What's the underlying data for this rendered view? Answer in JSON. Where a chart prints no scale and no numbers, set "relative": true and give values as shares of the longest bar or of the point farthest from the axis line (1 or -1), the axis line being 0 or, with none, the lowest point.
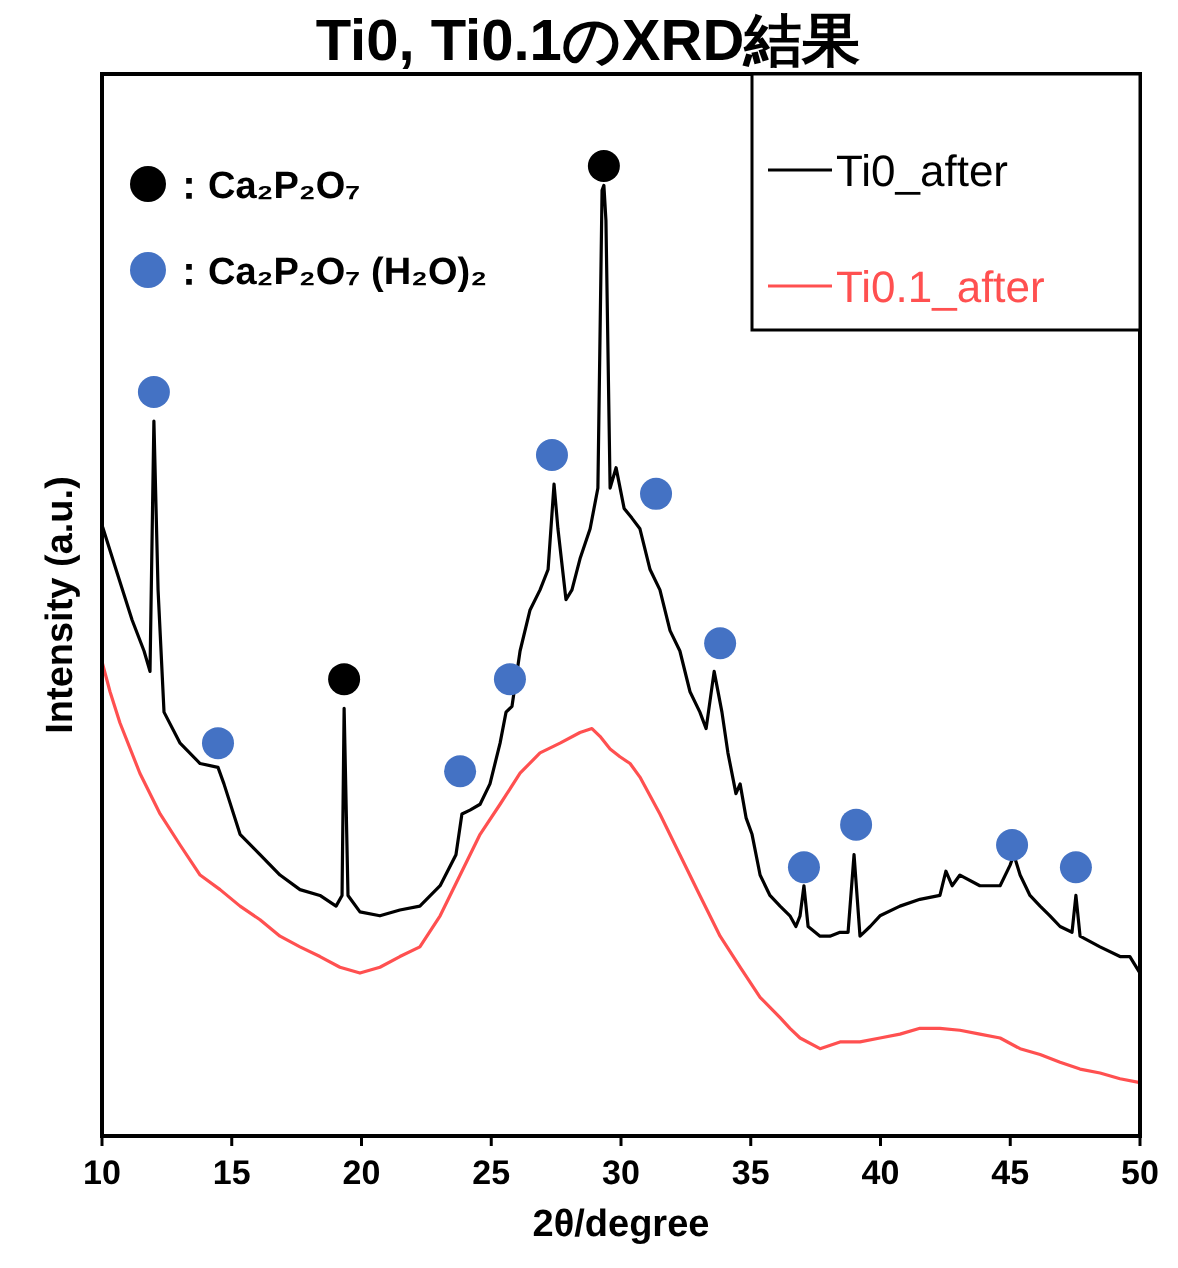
{
  "chart_data": {
    "type": "line",
    "title": "Ti0, Ti0.1のXRD結果",
    "xlabel": "2θ/degree",
    "ylabel": "Intensity (a.u.)",
    "relative": true,
    "xlim": [
      10,
      50
    ],
    "xticks": [
      10,
      15,
      20,
      25,
      30,
      35,
      40,
      45,
      50
    ],
    "legend": "top right",
    "grid": false,
    "marker": "none",
    "line_style": "solid",
    "series": [
      {
        "name": "Ti0_after",
        "color": "#000000",
        "x": [
          10.0,
          10.54,
          11.16,
          11.62,
          11.85,
          12.0,
          12.16,
          12.39,
          13.01,
          13.78,
          14.47,
          14.7,
          15.32,
          16.09,
          16.86,
          17.63,
          18.4,
          19.02,
          19.25,
          19.33,
          19.48,
          19.94,
          20.71,
          21.48,
          22.25,
          23.03,
          23.64,
          23.87,
          24.18,
          24.57,
          24.95,
          25.34,
          25.57,
          25.8,
          26.11,
          26.49,
          26.88,
          27.19,
          27.42,
          27.57,
          27.88,
          28.11,
          28.42,
          28.81,
          29.11,
          29.27,
          29.34,
          29.42,
          29.58,
          29.81,
          30.12,
          30.42,
          30.73,
          31.12,
          31.5,
          31.89,
          32.27,
          32.66,
          33.04,
          33.28,
          33.59,
          33.89,
          34.12,
          34.43,
          34.59,
          34.82,
          35.05,
          35.36,
          35.74,
          36.13,
          36.51,
          36.74,
          36.9,
          37.05,
          37.21,
          37.67,
          38.05,
          38.44,
          38.75,
          38.98,
          39.21,
          39.6,
          39.98,
          40.75,
          41.52,
          42.29,
          42.52,
          42.76,
          43.06,
          43.83,
          44.61,
          44.99,
          45.14,
          45.38,
          45.76,
          46.15,
          46.53,
          46.92,
          47.38,
          47.53,
          47.69,
          48.46,
          49.23,
          49.61,
          50.0
        ],
        "values": [
          0.63,
          0.584,
          0.532,
          0.5,
          0.479,
          0.737,
          0.563,
          0.437,
          0.405,
          0.384,
          0.38,
          0.363,
          0.311,
          0.29,
          0.269,
          0.254,
          0.248,
          0.237,
          0.248,
          0.441,
          0.248,
          0.231,
          0.227,
          0.233,
          0.237,
          0.258,
          0.29,
          0.332,
          0.336,
          0.342,
          0.363,
          0.405,
          0.437,
          0.443,
          0.5,
          0.542,
          0.563,
          0.584,
          0.672,
          0.626,
          0.553,
          0.563,
          0.595,
          0.626,
          0.668,
          0.975,
          0.98,
          0.944,
          0.668,
          0.689,
          0.647,
          0.637,
          0.626,
          0.584,
          0.563,
          0.521,
          0.5,
          0.458,
          0.437,
          0.42,
          0.479,
          0.437,
          0.395,
          0.353,
          0.363,
          0.328,
          0.311,
          0.269,
          0.248,
          0.237,
          0.227,
          0.216,
          0.227,
          0.258,
          0.216,
          0.206,
          0.206,
          0.21,
          0.21,
          0.29,
          0.206,
          0.216,
          0.227,
          0.237,
          0.244,
          0.248,
          0.273,
          0.258,
          0.269,
          0.258,
          0.258,
          0.279,
          0.29,
          0.269,
          0.248,
          0.237,
          0.227,
          0.216,
          0.21,
          0.248,
          0.206,
          0.195,
          0.185,
          0.185,
          0.168
        ]
      },
      {
        "name": "Ti0.1_after",
        "color": "#ff5050",
        "x": [
          10.0,
          10.31,
          10.69,
          11.46,
          12.24,
          13.01,
          13.78,
          14.55,
          15.32,
          16.09,
          16.86,
          17.63,
          18.4,
          19.17,
          19.94,
          20.71,
          21.48,
          22.25,
          23.03,
          23.8,
          24.57,
          25.34,
          26.11,
          26.88,
          27.65,
          28.42,
          28.88,
          29.19,
          29.58,
          29.96,
          30.35,
          30.73,
          31.5,
          32.27,
          33.04,
          33.82,
          34.59,
          35.36,
          36.13,
          36.51,
          36.9,
          37.67,
          38.44,
          39.21,
          39.98,
          40.75,
          41.52,
          42.29,
          43.06,
          43.83,
          44.61,
          45.38,
          46.15,
          46.92,
          47.69,
          48.46,
          49.23,
          50.0
        ],
        "values": [
          0.489,
          0.458,
          0.426,
          0.374,
          0.332,
          0.3,
          0.269,
          0.254,
          0.237,
          0.223,
          0.206,
          0.195,
          0.185,
          0.174,
          0.168,
          0.174,
          0.185,
          0.195,
          0.227,
          0.269,
          0.311,
          0.342,
          0.374,
          0.395,
          0.405,
          0.416,
          0.42,
          0.412,
          0.399,
          0.391,
          0.384,
          0.37,
          0.332,
          0.29,
          0.248,
          0.206,
          0.174,
          0.143,
          0.122,
          0.111,
          0.101,
          0.09,
          0.097,
          0.097,
          0.101,
          0.105,
          0.111,
          0.111,
          0.109,
          0.105,
          0.101,
          0.09,
          0.084,
          0.076,
          0.069,
          0.065,
          0.059,
          0.055
        ]
      },
      {
        "name": "：Ca₂P₂O₇",
        "type": "scatter",
        "marker": "circle",
        "color": "#000000",
        "x": [
          19.33,
          29.34
        ],
        "values": [
          0.471,
          1.0
        ]
      },
      {
        "name": "：Ca₂P₂O₇ (H₂O)₂",
        "type": "scatter",
        "marker": "circle",
        "color": "#4472c4",
        "x": [
          12.0,
          14.47,
          23.8,
          25.72,
          27.34,
          31.35,
          33.82,
          37.05,
          39.06,
          45.07,
          47.53
        ],
        "values": [
          0.767,
          0.405,
          0.376,
          0.471,
          0.702,
          0.662,
          0.508,
          0.277,
          0.321,
          0.3,
          0.277
        ]
      }
    ]
  }
}
